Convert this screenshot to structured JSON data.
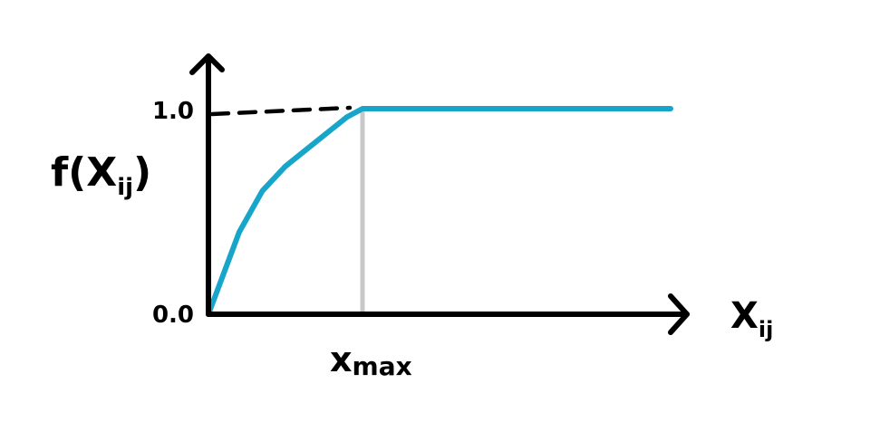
{
  "chart_data": {
    "type": "line",
    "title": "",
    "ylabel": "f(X",
    "ylabel_sub": "ij",
    "ylabel_close": ")",
    "xlabel": "X",
    "xlabel_sub": "ij",
    "x_annotation": "x",
    "x_annotation_sub": "max",
    "y_ticks": [
      "0.0",
      "1.0"
    ],
    "xlim": [
      0,
      3
    ],
    "ylim": [
      0,
      1
    ],
    "x_max_value": 1,
    "grid": false,
    "series": [
      {
        "color": "#17a5c9",
        "x": [
          0,
          0.1,
          0.2,
          0.35,
          0.5,
          0.65,
          0.8,
          0.9,
          1.0,
          2.0,
          3.0
        ],
        "y": [
          0,
          0.2,
          0.4,
          0.6,
          0.72,
          0.81,
          0.9,
          0.96,
          1.0,
          1.0,
          1.0
        ]
      }
    ],
    "colors": {
      "series": "#17a5c9",
      "axis": "#000000",
      "guide_vertical": "#c8c8c8",
      "guide_dashed": "#000000"
    }
  }
}
